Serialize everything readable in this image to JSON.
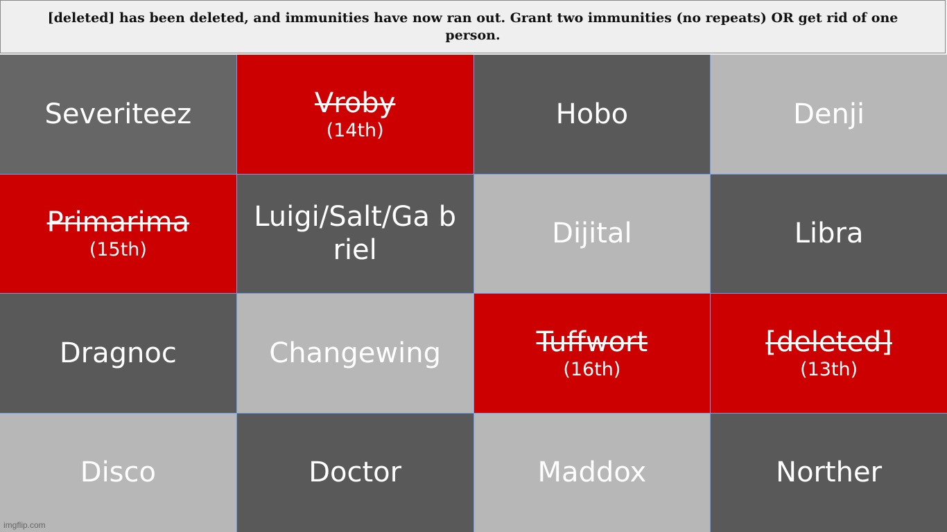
{
  "header": {
    "text": "[deleted] has been deleted, and immunities have now ran out. Grant two immunities (no repeats) OR get rid of one person."
  },
  "colors": {
    "red": "#cc0000",
    "dark": "#595959",
    "medium": "#666666",
    "light": "#b7b7b7",
    "header_bg": "#efefef"
  },
  "cells": [
    {
      "name": "Severiteez",
      "color": "#666666",
      "eliminated": false,
      "place": ""
    },
    {
      "name": "Vroby",
      "color": "#cc0000",
      "eliminated": true,
      "place": "(14th)"
    },
    {
      "name": "Hobo",
      "color": "#595959",
      "eliminated": false,
      "place": ""
    },
    {
      "name": "Denji",
      "color": "#b7b7b7",
      "eliminated": false,
      "place": ""
    },
    {
      "name": "Primarima",
      "color": "#cc0000",
      "eliminated": true,
      "place": "(15th)"
    },
    {
      "name": "Luigi/Salt/Ga briel",
      "color": "#595959",
      "eliminated": false,
      "place": ""
    },
    {
      "name": "Dijital",
      "color": "#b7b7b7",
      "eliminated": false,
      "place": ""
    },
    {
      "name": "Libra",
      "color": "#595959",
      "eliminated": false,
      "place": ""
    },
    {
      "name": "Dragnoc",
      "color": "#595959",
      "eliminated": false,
      "place": ""
    },
    {
      "name": "Changewing",
      "color": "#b7b7b7",
      "eliminated": false,
      "place": ""
    },
    {
      "name": "Tuffwort",
      "color": "#cc0000",
      "eliminated": true,
      "place": "(16th)"
    },
    {
      "name": "[deleted]",
      "color": "#cc0000",
      "eliminated": true,
      "place": "(13th)"
    },
    {
      "name": "Disco",
      "color": "#b7b7b7",
      "eliminated": false,
      "place": ""
    },
    {
      "name": "Doctor",
      "color": "#595959",
      "eliminated": false,
      "place": ""
    },
    {
      "name": "Maddox",
      "color": "#b7b7b7",
      "eliminated": false,
      "place": ""
    },
    {
      "name": "Norther",
      "color": "#595959",
      "eliminated": false,
      "place": ""
    }
  ],
  "watermark": "imgflip.com"
}
